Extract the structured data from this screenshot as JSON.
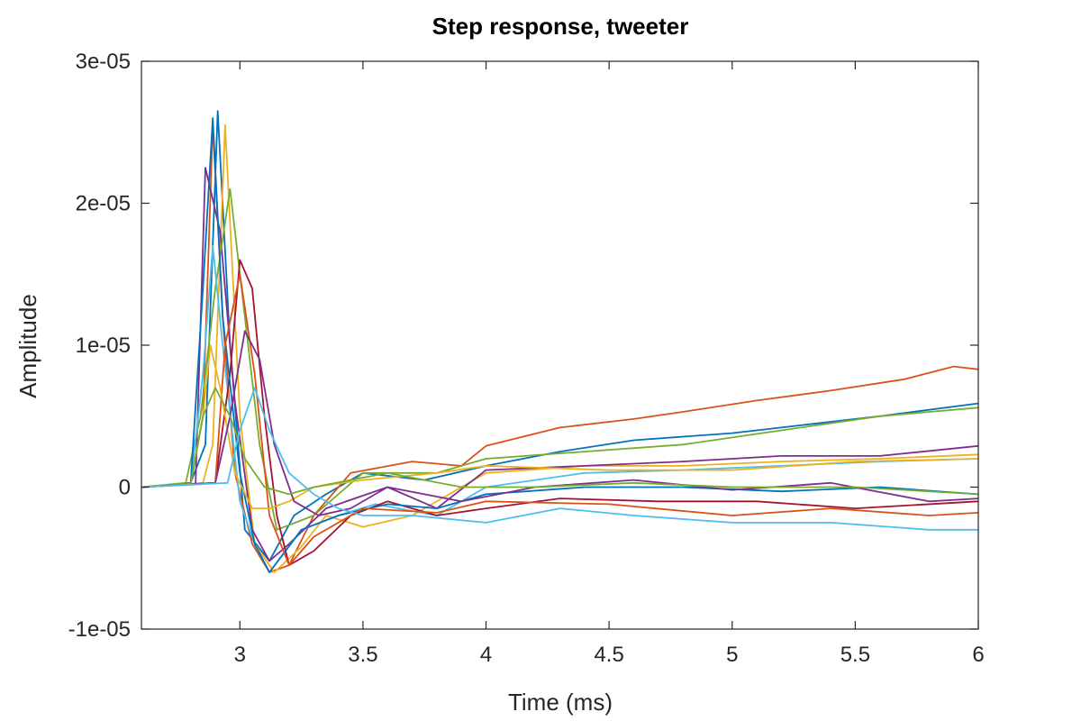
{
  "chart_data": {
    "type": "line",
    "title": "Step response, tweeter",
    "xlabel": "Time (ms)",
    "ylabel": "Amplitude",
    "xlim": [
      2.6,
      6.0
    ],
    "ylim": [
      -1e-05,
      3e-05
    ],
    "xticks": [
      3,
      3.5,
      4,
      4.5,
      5,
      5.5,
      6
    ],
    "xtick_labels": [
      "3",
      "3.5",
      "4",
      "4.5",
      "5",
      "5.5",
      "6"
    ],
    "yticks": [
      -1e-05,
      0,
      1e-05,
      2e-05,
      3e-05
    ],
    "ytick_labels": [
      "-1e-05",
      "0",
      "1e-05",
      "2e-05",
      "3e-05"
    ],
    "grid": false,
    "legend": "none",
    "series": [
      {
        "color": "#0072BD",
        "x": [
          2.6,
          2.8,
          2.86,
          2.91,
          2.96,
          3.02,
          3.12,
          3.22,
          3.35,
          3.5,
          3.75,
          4.0,
          4.3,
          4.6,
          5.0,
          5.3,
          5.6,
          6.0
        ],
        "y": [
          0,
          3e-07,
          3e-06,
          2.65e-05,
          1e-05,
          -3e-06,
          -5.2e-06,
          -2e-06,
          -5e-07,
          1e-06,
          5e-07,
          1.5e-06,
          2.5e-06,
          3.3e-06,
          3.8e-06,
          4.4e-06,
          5e-06,
          5.9e-06
        ]
      },
      {
        "color": "#D95319",
        "x": [
          2.6,
          2.8,
          2.85,
          2.89,
          2.93,
          2.98,
          3.05,
          3.12,
          3.2,
          3.3,
          3.45,
          3.7,
          3.9,
          4.0,
          4.3,
          4.6,
          4.8,
          5.1,
          5.4,
          5.7,
          5.9,
          6.0
        ],
        "y": [
          0,
          2e-07,
          5e-06,
          2.55e-05,
          1.2e-05,
          1e-06,
          -4e-06,
          -6e-06,
          -5.5e-06,
          -2e-06,
          1e-06,
          1.8e-06,
          1.5e-06,
          2.9e-06,
          4.2e-06,
          4.8e-06,
          5.3e-06,
          6.1e-06,
          6.8e-06,
          7.6e-06,
          8.5e-06,
          8.3e-06
        ]
      },
      {
        "color": "#EDB120",
        "x": [
          2.6,
          2.85,
          2.89,
          2.94,
          3.0,
          3.06,
          3.14,
          3.25,
          3.35,
          3.5,
          3.7,
          4.0,
          4.4,
          4.8,
          5.2,
          5.6,
          6.0
        ],
        "y": [
          0,
          3e-07,
          3e-06,
          2.55e-05,
          5e-06,
          -4e-06,
          -6e-06,
          -4.2e-06,
          -2e-06,
          -2.8e-06,
          -2e-06,
          1e-06,
          1.5e-06,
          1.5e-06,
          1.8e-06,
          2e-06,
          2.3e-06
        ]
      },
      {
        "color": "#7E2F8E",
        "x": [
          2.6,
          2.82,
          2.86,
          2.92,
          2.98,
          3.05,
          3.12,
          3.2,
          3.35,
          3.6,
          3.8,
          4.0,
          4.4,
          4.8,
          5.2,
          5.6,
          6.0
        ],
        "y": [
          0,
          2e-07,
          2.25e-05,
          1.8e-05,
          6e-06,
          -3e-06,
          -5.2e-06,
          -4e-06,
          -1.5e-06,
          0,
          -1.5e-06,
          1.2e-06,
          1.5e-06,
          1.8e-06,
          2.2e-06,
          2.2e-06,
          2.9e-06
        ]
      },
      {
        "color": "#77AC30",
        "x": [
          2.6,
          2.78,
          2.84,
          2.9,
          2.96,
          3.02,
          3.08,
          3.15,
          3.3,
          3.5,
          3.8,
          4.0,
          4.4,
          4.8,
          5.2,
          5.6,
          6.0
        ],
        "y": [
          0,
          3e-07,
          5e-06,
          1.4e-05,
          2.1e-05,
          1.2e-05,
          3e-06,
          -3e-06,
          -2e-06,
          1e-06,
          1e-06,
          2e-06,
          2.5e-06,
          3e-06,
          4e-06,
          5e-06,
          5.6e-06
        ]
      },
      {
        "color": "#4DBEEE",
        "x": [
          2.6,
          2.8,
          2.85,
          2.89,
          2.93,
          3.0,
          3.06,
          3.12,
          3.25,
          3.4,
          3.55,
          3.8,
          4.0,
          4.4,
          4.8,
          5.2,
          5.6,
          6.0
        ],
        "y": [
          0,
          2e-07,
          8e-06,
          1.7e-05,
          1e-05,
          -1e-06,
          -4e-06,
          -6e-06,
          -3e-06,
          -2e-06,
          -1.2e-06,
          -2e-06,
          0,
          1e-06,
          1.2e-06,
          1.5e-06,
          1.8e-06,
          2e-06
        ]
      },
      {
        "color": "#A2142F",
        "x": [
          2.6,
          2.9,
          2.96,
          3.0,
          3.05,
          3.1,
          3.15,
          3.2,
          3.3,
          3.45,
          3.6,
          3.8,
          4.0,
          4.3,
          4.7,
          5.1,
          5.5,
          6.0
        ],
        "y": [
          0,
          3e-07,
          8e-06,
          1.6e-05,
          1.4e-05,
          5e-06,
          -2e-06,
          -5.5e-06,
          -4.5e-06,
          -2e-06,
          -1e-06,
          -2e-06,
          -1.5e-06,
          -8e-07,
          -1e-06,
          -1e-06,
          -1.5e-06,
          -1e-06
        ]
      },
      {
        "color": "#0072BD",
        "x": [
          2.6,
          2.8,
          2.85,
          2.89,
          2.93,
          3.0,
          3.06,
          3.12,
          3.25,
          3.4,
          3.6,
          3.8,
          4.0,
          4.4,
          4.8,
          5.2,
          5.6,
          6.0
        ],
        "y": [
          0,
          2e-07,
          1.4e-05,
          2.6e-05,
          1.2e-05,
          1e-06,
          -4e-06,
          -6e-06,
          -3e-06,
          -2e-06,
          -1.2e-06,
          -1.5e-06,
          -5e-07,
          0,
          0,
          -3e-07,
          0,
          -5e-07
        ]
      },
      {
        "color": "#D95319",
        "x": [
          2.6,
          2.9,
          2.94,
          3.0,
          3.06,
          3.12,
          3.2,
          3.3,
          3.5,
          3.8,
          4.0,
          4.5,
          5.0,
          5.4,
          5.8,
          6.0
        ],
        "y": [
          0,
          3e-07,
          1e-05,
          1.5e-05,
          8e-06,
          -2e-06,
          -5.5e-06,
          -3.5e-06,
          -1.5e-06,
          -1.8e-06,
          -1e-06,
          -1.2e-06,
          -2e-06,
          -1.5e-06,
          -2e-06,
          -1.8e-06
        ]
      },
      {
        "color": "#EDB120",
        "x": [
          2.6,
          2.8,
          2.85,
          2.88,
          2.92,
          2.98,
          3.05,
          3.12,
          3.2,
          3.3,
          3.5,
          3.8,
          4.0,
          4.5,
          5.0,
          5.5,
          6.0
        ],
        "y": [
          0,
          2e-07,
          5e-06,
          1e-05,
          7e-06,
          1e-06,
          -1.5e-06,
          -1.5e-06,
          -1e-06,
          0,
          5e-07,
          1e-06,
          1.5e-06,
          1.2e-06,
          1.2e-06,
          1.8e-06,
          2e-06
        ]
      },
      {
        "color": "#7E2F8E",
        "x": [
          2.6,
          2.9,
          2.96,
          3.02,
          3.08,
          3.14,
          3.22,
          3.32,
          3.45,
          3.6,
          3.9,
          4.2,
          4.6,
          5.0,
          5.4,
          5.8,
          6.0
        ],
        "y": [
          0,
          3e-07,
          5e-06,
          1.1e-05,
          9e-06,
          3e-06,
          -1e-06,
          -2e-06,
          -1.5e-06,
          0,
          -1e-06,
          0,
          5e-07,
          -2e-07,
          3e-07,
          -1e-06,
          -8e-07
        ]
      },
      {
        "color": "#77AC30",
        "x": [
          2.6,
          2.8,
          2.85,
          2.9,
          2.96,
          3.02,
          3.1,
          3.2,
          3.3,
          3.45,
          3.6,
          3.9,
          4.2,
          4.6,
          5.0,
          5.5,
          6.0
        ],
        "y": [
          0,
          2e-07,
          5e-06,
          7e-06,
          5e-06,
          2e-06,
          0,
          -5e-07,
          0,
          5e-07,
          1e-06,
          0,
          0,
          3e-07,
          0,
          0,
          -5e-07
        ]
      },
      {
        "color": "#4DBEEE",
        "x": [
          2.6,
          2.95,
          3.0,
          3.06,
          3.12,
          3.2,
          3.3,
          3.4,
          3.5,
          3.7,
          4.0,
          4.3,
          4.6,
          5.0,
          5.4,
          5.8,
          6.0
        ],
        "y": [
          0,
          3e-07,
          4e-06,
          7e-06,
          4e-06,
          1e-06,
          -5e-07,
          -1.5e-06,
          -2e-06,
          -2e-06,
          -2.5e-06,
          -1.5e-06,
          -2e-06,
          -2.5e-06,
          -2.5e-06,
          -3e-06,
          -3e-06
        ]
      }
    ]
  }
}
